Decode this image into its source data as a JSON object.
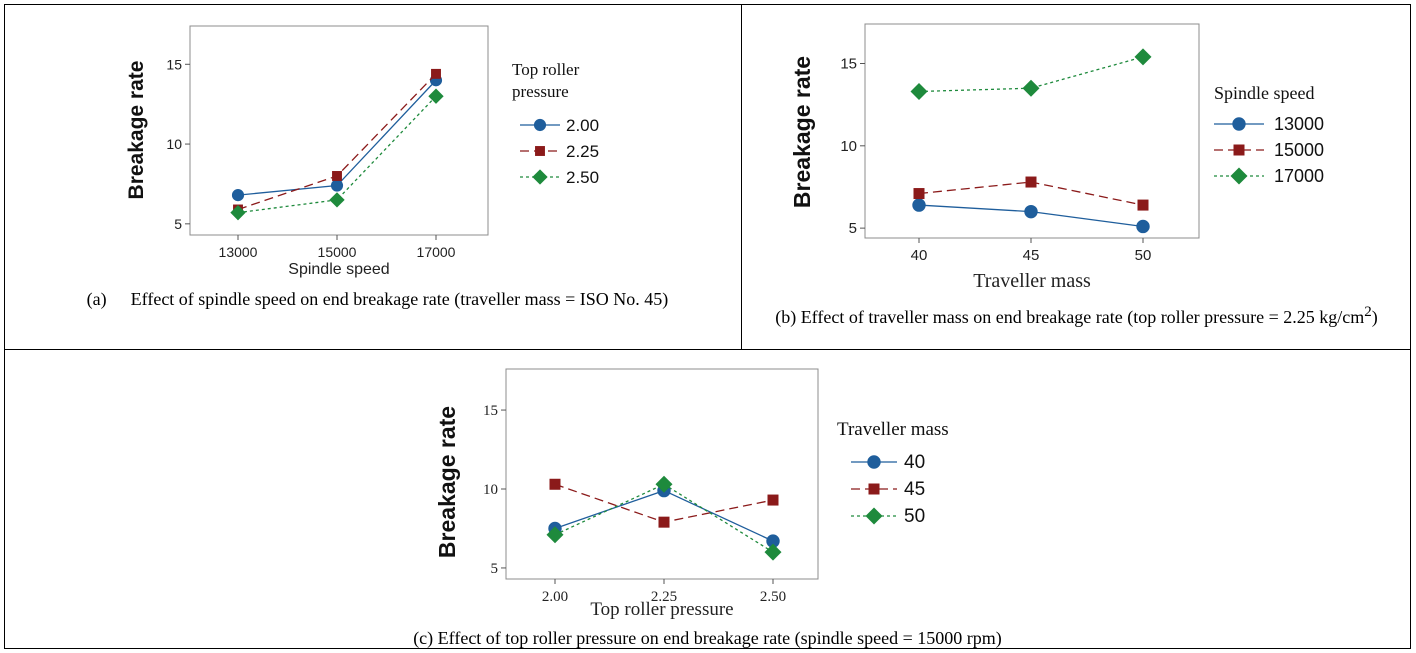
{
  "chart_data": [
    {
      "id": "a",
      "type": "line",
      "title": "",
      "xlabel": "Spindle speed",
      "ylabel": "Breakage rate",
      "categories": [
        "13000",
        "15000",
        "17000"
      ],
      "yticks": [
        "5",
        "10",
        "15"
      ],
      "ylim": [
        4.3,
        17.4
      ],
      "legend_title": [
        "Top roller",
        "pressure"
      ],
      "legend_position": "right",
      "series": [
        {
          "name": "2.00",
          "values": [
            6.8,
            7.4,
            14.0
          ],
          "color": "#1f5e9c",
          "marker": "circle",
          "dash": "solid"
        },
        {
          "name": "2.25",
          "values": [
            5.9,
            8.0,
            14.4
          ],
          "color": "#8b1a1a",
          "marker": "square",
          "dash": "long-dash"
        },
        {
          "name": "2.50",
          "values": [
            5.7,
            6.5,
            13.0
          ],
          "color": "#1e8a3c",
          "marker": "diamond",
          "dash": "short-dash"
        }
      ],
      "caption_number": "(a)",
      "caption": "Effect of spindle speed on end breakage rate (traveller mass = ISO No. 45)"
    },
    {
      "id": "b",
      "type": "line",
      "title": "",
      "xlabel": "Traveller mass",
      "ylabel": "Breakage rate",
      "categories": [
        "40",
        "45",
        "50"
      ],
      "yticks": [
        "5",
        "10",
        "15"
      ],
      "ylim": [
        4.4,
        17.4
      ],
      "legend_title": [
        "Spindle speed"
      ],
      "legend_position": "right",
      "series": [
        {
          "name": "13000",
          "values": [
            6.4,
            6.0,
            5.1
          ],
          "color": "#1f5e9c",
          "marker": "circle",
          "dash": "solid"
        },
        {
          "name": "15000",
          "values": [
            7.1,
            7.8,
            6.4
          ],
          "color": "#8b1a1a",
          "marker": "square",
          "dash": "long-dash"
        },
        {
          "name": "17000",
          "values": [
            13.3,
            13.5,
            15.4
          ],
          "color": "#1e8a3c",
          "marker": "diamond",
          "dash": "short-dash"
        }
      ],
      "caption_main": "(b) Effect of traveller mass on end breakage rate (top roller pressure = 2.25 kg/cm",
      "caption_sup": "2",
      "caption_end": ")"
    },
    {
      "id": "c",
      "type": "line",
      "title": "",
      "xlabel": "Top roller pressure",
      "ylabel": "Breakage rate",
      "categories": [
        "2.00",
        "2.25",
        "2.50"
      ],
      "yticks": [
        "5",
        "10",
        "15"
      ],
      "ylim": [
        4.3,
        17.6
      ],
      "legend_title": [
        "Traveller mass"
      ],
      "legend_position": "right",
      "series": [
        {
          "name": "40",
          "values": [
            7.5,
            9.9,
            6.7
          ],
          "color": "#1f5e9c",
          "marker": "circle",
          "dash": "solid"
        },
        {
          "name": "45",
          "values": [
            10.3,
            7.9,
            9.3
          ],
          "color": "#8b1a1a",
          "marker": "square",
          "dash": "long-dash"
        },
        {
          "name": "50",
          "values": [
            7.1,
            10.3,
            6.0
          ],
          "color": "#1e8a3c",
          "marker": "diamond",
          "dash": "short-dash"
        }
      ],
      "caption": "(c) Effect of top roller pressure on end breakage rate (spindle speed = 15000 rpm)"
    }
  ]
}
